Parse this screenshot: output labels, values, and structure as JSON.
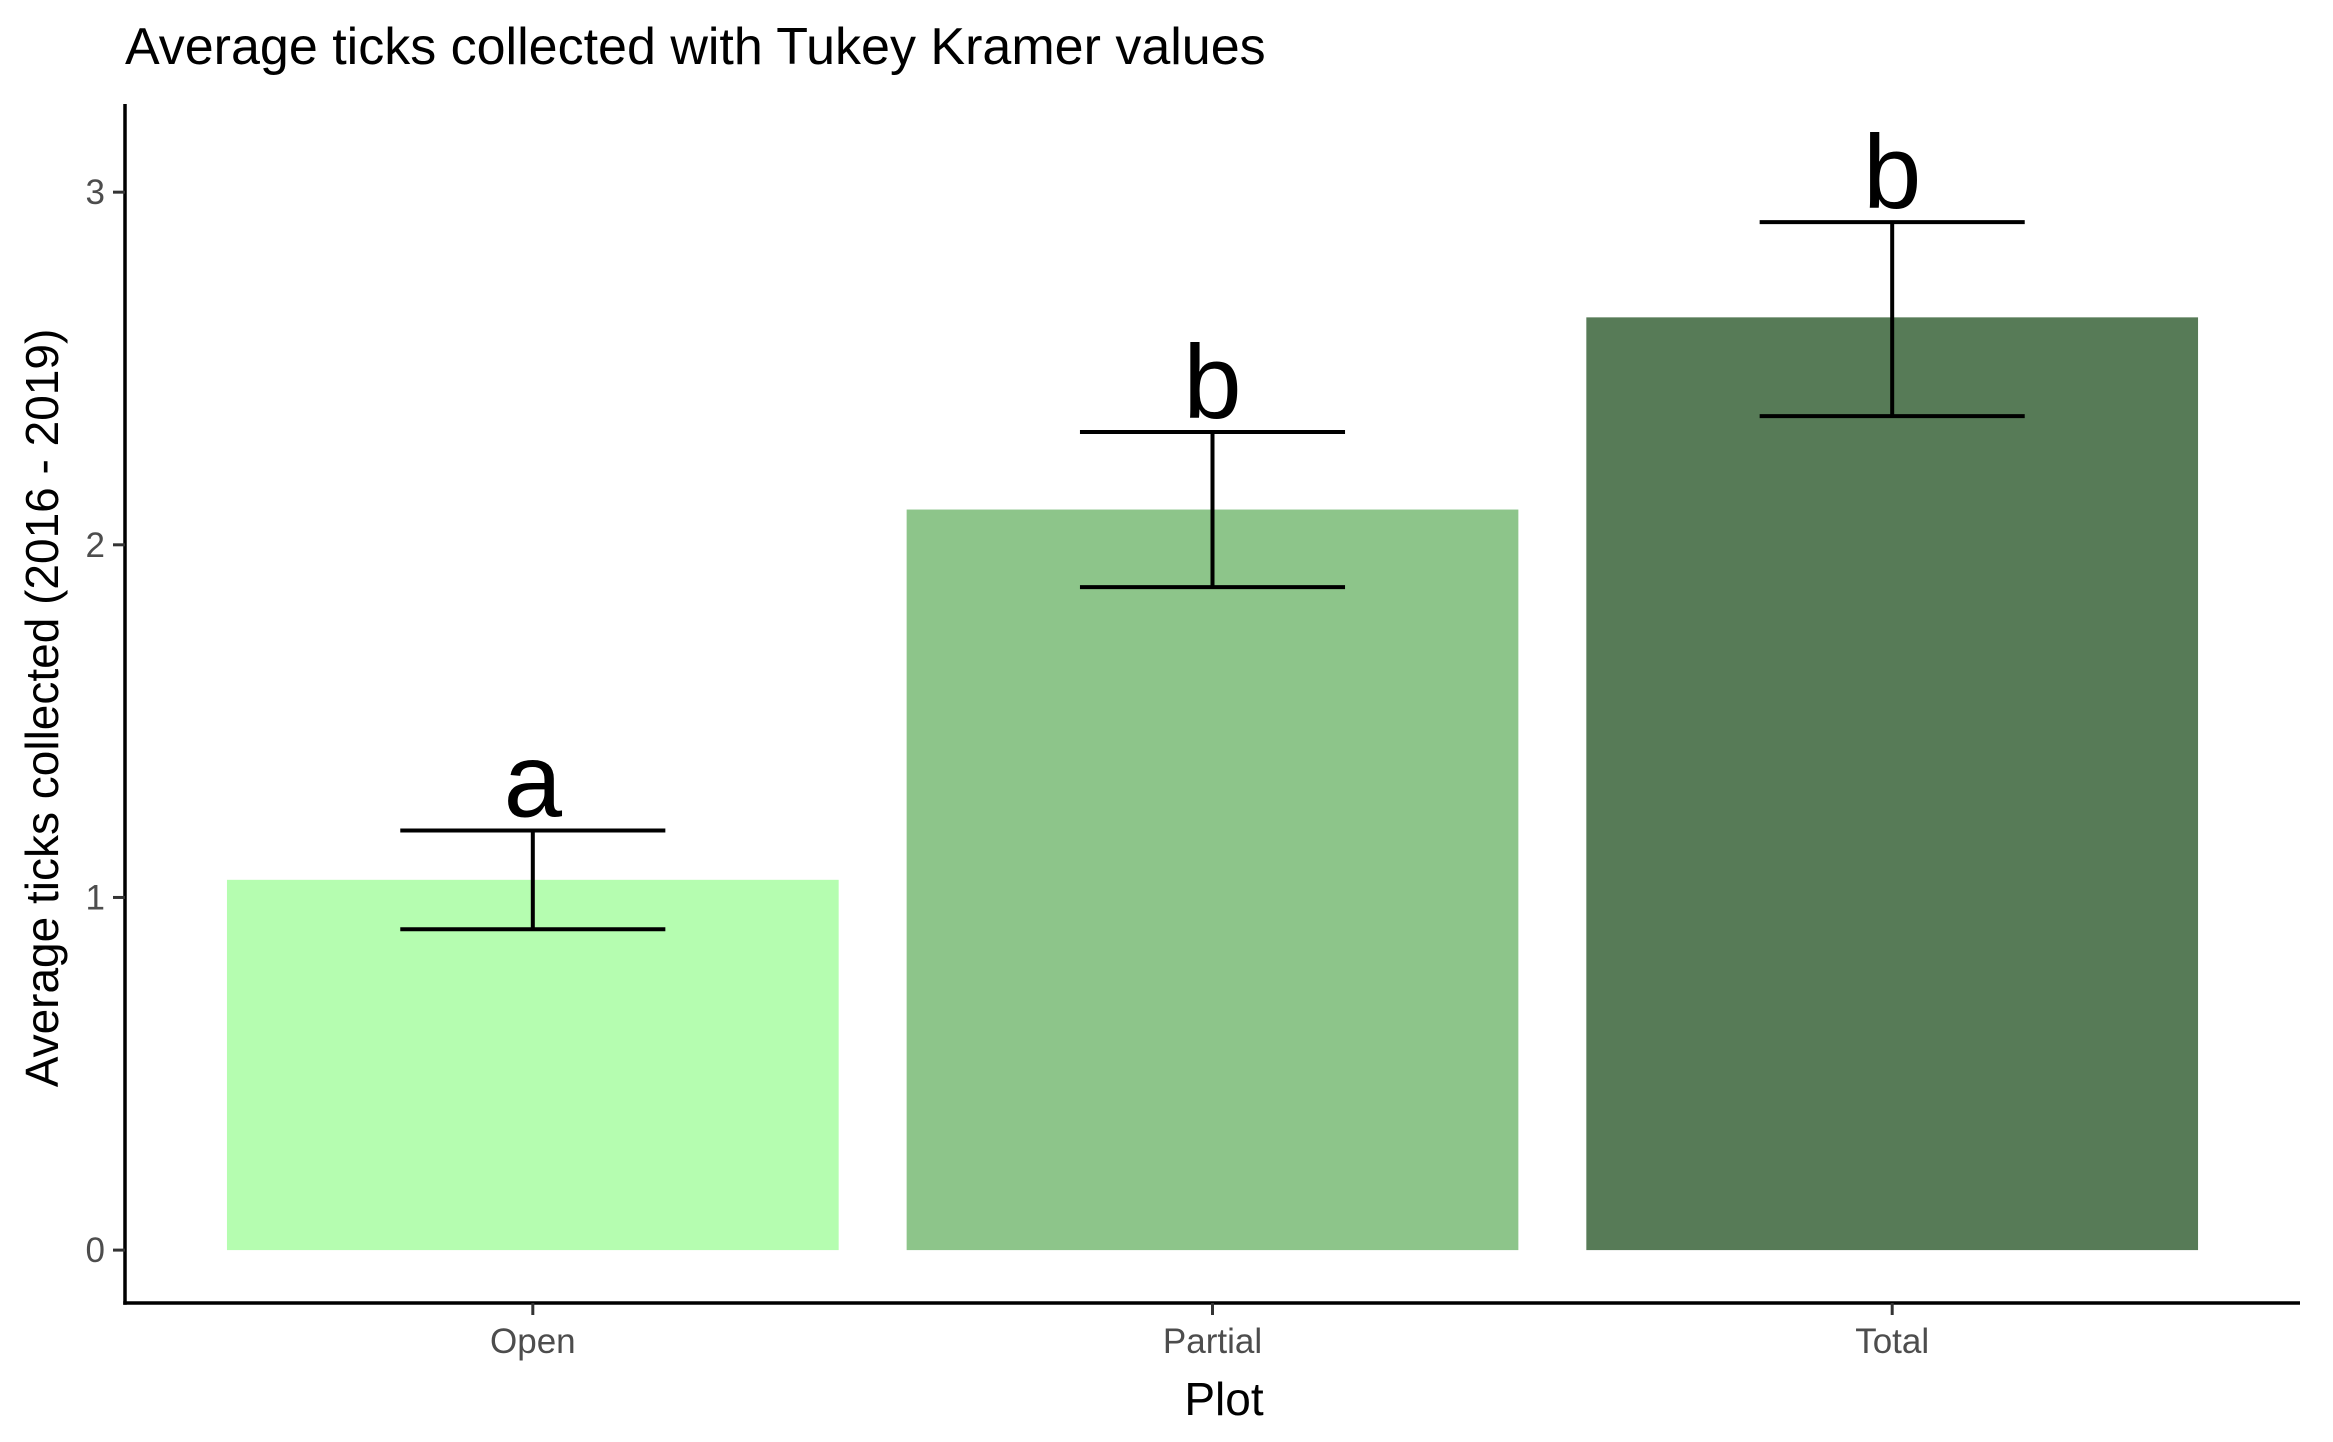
{
  "chart_data": {
    "type": "bar",
    "title": "Average ticks collected with Tukey Kramer values",
    "xlabel": "Plot",
    "ylabel": "Average ticks collected (2016 - 2019)",
    "categories": [
      "Open",
      "Partial",
      "Total"
    ],
    "values": [
      1.05,
      2.1,
      2.645
    ],
    "error_low": [
      0.91,
      1.88,
      2.365
    ],
    "error_high": [
      1.19,
      2.32,
      2.915
    ],
    "group_letters": [
      "a",
      "b",
      "b"
    ],
    "bar_colors": [
      "#b5fdb0",
      "#8dc58a",
      "#577b57"
    ],
    "ylim": [
      -0.15,
      3.25
    ],
    "yticks": [
      0,
      1,
      2,
      3
    ],
    "grid": false,
    "legend": "none"
  }
}
